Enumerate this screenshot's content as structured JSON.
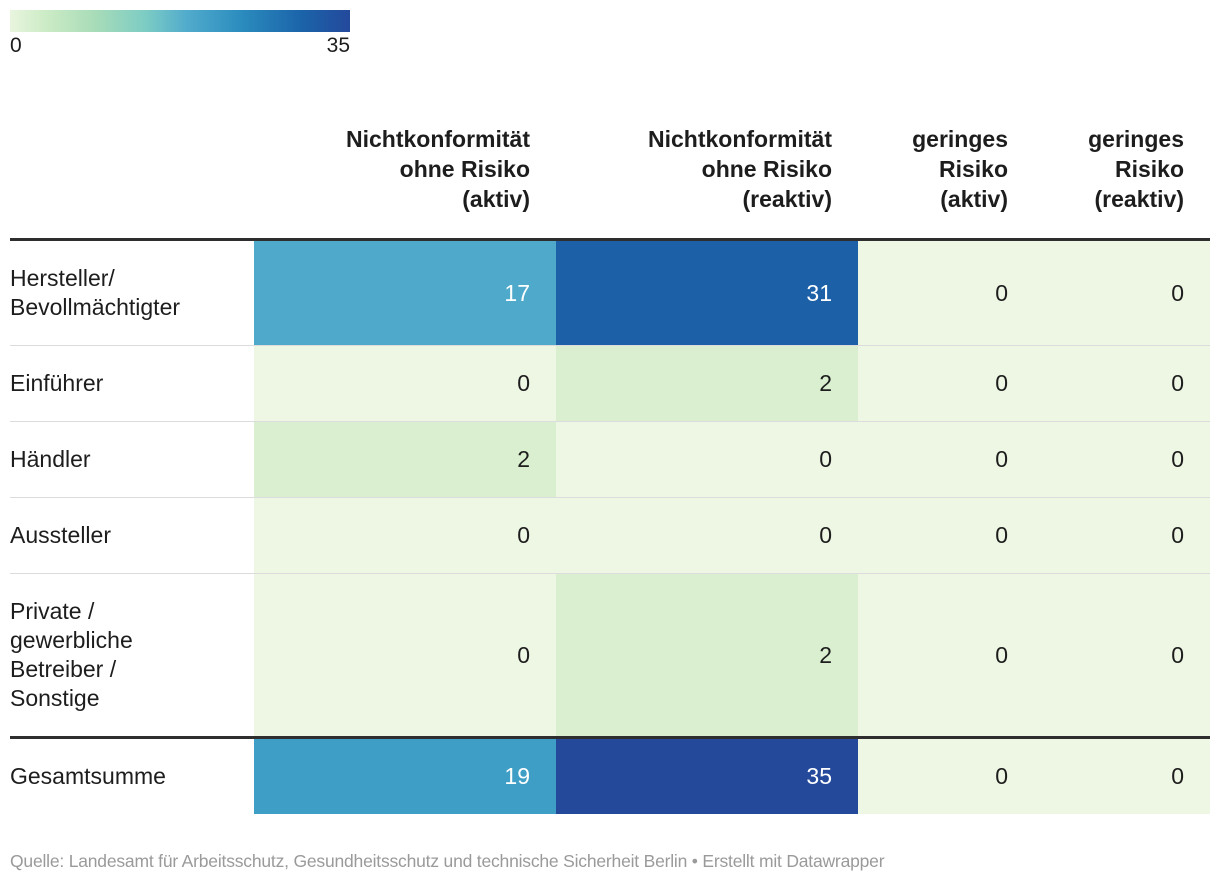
{
  "legend": {
    "min": "0",
    "max": "35"
  },
  "footer": {
    "text": "Quelle: Landesamt für Arbeitsschutz, Gesundheitsschutz und technische Sicherheit Berlin • Erstellt mit Datawrapper"
  },
  "table": {
    "columns": [
      {
        "label": "Nichtkonformität\nohne Risiko\n(aktiv)"
      },
      {
        "label": "Nichtkonformität\nohne Risiko\n(reaktiv)"
      },
      {
        "label": "geringes\nRisiko\n(aktiv)"
      },
      {
        "label": "geringes\nRisiko\n(reaktiv)"
      }
    ],
    "rows": [
      {
        "label": "Hersteller/\nBevollmächtigter",
        "values": [
          17,
          31,
          0,
          0
        ],
        "total": false
      },
      {
        "label": "Einführer",
        "values": [
          0,
          2,
          0,
          0
        ],
        "total": false
      },
      {
        "label": "Händler",
        "values": [
          2,
          0,
          0,
          0
        ],
        "total": false
      },
      {
        "label": "Aussteller",
        "values": [
          0,
          0,
          0,
          0
        ],
        "total": false
      },
      {
        "label": "Private /\ngewerbliche\nBetreiber /\nSonstige",
        "values": [
          0,
          2,
          0,
          0
        ],
        "total": false
      },
      {
        "label": "Gesamtsumme",
        "values": [
          19,
          35,
          0,
          0
        ],
        "total": true
      }
    ]
  },
  "heatmap": {
    "value_colors": {
      "0": "#edf7e3",
      "2": "#d9efcf",
      "17": "#4fa9cb",
      "19": "#3f9ec5",
      "31": "#1c61a8",
      "35": "#24499b"
    },
    "light_text_values": [
      17,
      19,
      31,
      35
    ],
    "dark_text_color": "#1d1d1d",
    "light_text_color": "#ffffff",
    "scale_min_color": "#e9f5df",
    "scale_max_color": "#24499c",
    "border_color": "#2e2e2e",
    "separator_color": "#dcdcdc"
  },
  "chart_data": {
    "type": "heatmap",
    "title": "",
    "columns": [
      "Nichtkonformität ohne Risiko (aktiv)",
      "Nichtkonformität ohne Risiko (reaktiv)",
      "geringes Risiko (aktiv)",
      "geringes Risiko (reaktiv)"
    ],
    "rows": [
      "Hersteller/ Bevollmächtigter",
      "Einführer",
      "Händler",
      "Aussteller",
      "Private / gewerbliche Betreiber / Sonstige",
      "Gesamtsumme"
    ],
    "values": [
      [
        17,
        31,
        0,
        0
      ],
      [
        0,
        2,
        0,
        0
      ],
      [
        2,
        0,
        0,
        0
      ],
      [
        0,
        0,
        0,
        0
      ],
      [
        0,
        2,
        0,
        0
      ],
      [
        19,
        35,
        0,
        0
      ]
    ],
    "color_scale": {
      "min": 0,
      "max": 35,
      "legend_position": "top-left"
    },
    "source": "Quelle: Landesamt für Arbeitsschutz, Gesundheitsschutz und technische Sicherheit Berlin • Erstellt mit Datawrapper"
  }
}
